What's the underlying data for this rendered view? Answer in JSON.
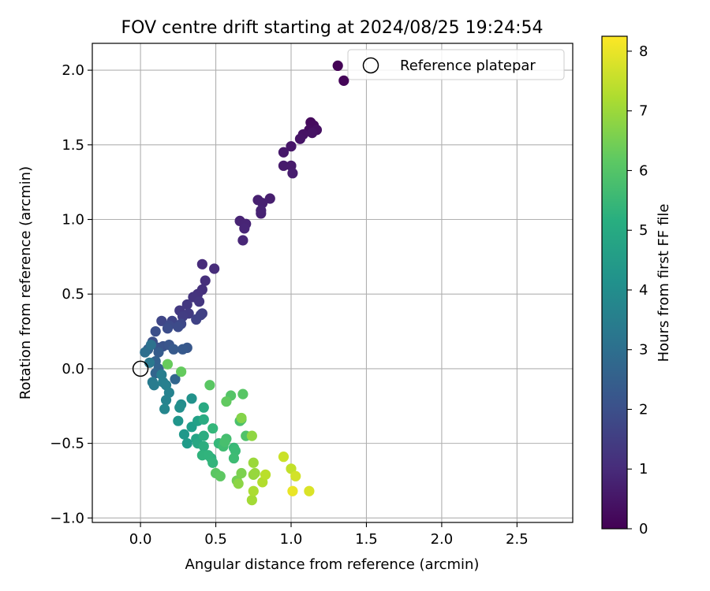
{
  "chart_data": {
    "type": "scatter",
    "title": "FOV centre drift starting at 2024/08/25 19:24:54",
    "xlabel": "Angular distance from reference (arcmin)",
    "ylabel": "Rotation from reference (arcmin)",
    "xlim": [
      -0.32,
      2.87
    ],
    "ylim": [
      -1.03,
      2.18
    ],
    "xticks": [
      0.0,
      0.5,
      1.0,
      1.5,
      2.0,
      2.5
    ],
    "xtick_labels": [
      "0.0",
      "0.5",
      "1.0",
      "1.5",
      "2.0",
      "2.5"
    ],
    "yticks": [
      -1.0,
      -0.5,
      0.0,
      0.5,
      1.0,
      1.5,
      2.0
    ],
    "ytick_labels": [
      "−1.0",
      "−0.5",
      "0.0",
      "0.5",
      "1.0",
      "1.5",
      "2.0"
    ],
    "grid": true,
    "legend": {
      "position": "top-right",
      "entries": [
        "Reference platepar"
      ]
    },
    "reference_point": {
      "x": 0.0,
      "y": 0.0,
      "label": "Reference platepar"
    },
    "colorbar": {
      "label": "Hours from first FF file",
      "range": [
        0,
        8.25
      ],
      "ticks": [
        0,
        1,
        2,
        3,
        4,
        5,
        6,
        7,
        8
      ],
      "tick_labels": [
        "0",
        "1",
        "2",
        "3",
        "4",
        "5",
        "6",
        "7",
        "8"
      ],
      "colormap": "viridis"
    },
    "points": [
      {
        "x": 1.31,
        "y": 2.03,
        "c": 0.05
      },
      {
        "x": 1.35,
        "y": 1.93,
        "c": 0.1
      },
      {
        "x": 1.13,
        "y": 1.65,
        "c": 0.2
      },
      {
        "x": 1.15,
        "y": 1.63,
        "c": 0.25
      },
      {
        "x": 1.12,
        "y": 1.6,
        "c": 0.3
      },
      {
        "x": 1.17,
        "y": 1.6,
        "c": 0.35
      },
      {
        "x": 1.08,
        "y": 1.57,
        "c": 0.4
      },
      {
        "x": 1.14,
        "y": 1.58,
        "c": 0.42
      },
      {
        "x": 1.06,
        "y": 1.54,
        "c": 0.45
      },
      {
        "x": 1.0,
        "y": 1.49,
        "c": 0.5
      },
      {
        "x": 0.95,
        "y": 1.45,
        "c": 0.55
      },
      {
        "x": 0.95,
        "y": 1.36,
        "c": 0.6
      },
      {
        "x": 1.0,
        "y": 1.36,
        "c": 0.62
      },
      {
        "x": 1.01,
        "y": 1.31,
        "c": 0.65
      },
      {
        "x": 0.86,
        "y": 1.14,
        "c": 0.7
      },
      {
        "x": 0.78,
        "y": 1.13,
        "c": 0.72
      },
      {
        "x": 0.81,
        "y": 1.11,
        "c": 0.75
      },
      {
        "x": 0.8,
        "y": 1.04,
        "c": 0.78
      },
      {
        "x": 0.8,
        "y": 1.06,
        "c": 0.8
      },
      {
        "x": 0.66,
        "y": 0.99,
        "c": 0.82
      },
      {
        "x": 0.7,
        "y": 0.97,
        "c": 0.85
      },
      {
        "x": 0.69,
        "y": 0.94,
        "c": 0.88
      },
      {
        "x": 0.68,
        "y": 0.86,
        "c": 0.9
      },
      {
        "x": 0.41,
        "y": 0.7,
        "c": 1.0
      },
      {
        "x": 0.49,
        "y": 0.67,
        "c": 1.05
      },
      {
        "x": 0.43,
        "y": 0.59,
        "c": 1.1
      },
      {
        "x": 0.41,
        "y": 0.53,
        "c": 1.15
      },
      {
        "x": 0.38,
        "y": 0.5,
        "c": 1.2
      },
      {
        "x": 0.35,
        "y": 0.48,
        "c": 1.25
      },
      {
        "x": 0.39,
        "y": 0.45,
        "c": 1.3
      },
      {
        "x": 0.31,
        "y": 0.43,
        "c": 1.35
      },
      {
        "x": 0.26,
        "y": 0.39,
        "c": 1.4
      },
      {
        "x": 0.32,
        "y": 0.37,
        "c": 1.45
      },
      {
        "x": 0.28,
        "y": 0.35,
        "c": 1.5
      },
      {
        "x": 0.41,
        "y": 0.37,
        "c": 1.55
      },
      {
        "x": 0.4,
        "y": 0.36,
        "c": 1.6
      },
      {
        "x": 0.37,
        "y": 0.33,
        "c": 1.65
      },
      {
        "x": 0.21,
        "y": 0.32,
        "c": 1.7
      },
      {
        "x": 0.14,
        "y": 0.32,
        "c": 1.75
      },
      {
        "x": 0.27,
        "y": 0.3,
        "c": 1.8
      },
      {
        "x": 0.19,
        "y": 0.29,
        "c": 1.85
      },
      {
        "x": 0.25,
        "y": 0.28,
        "c": 1.9
      },
      {
        "x": 0.18,
        "y": 0.27,
        "c": 1.95
      },
      {
        "x": 0.1,
        "y": 0.25,
        "c": 2.0
      },
      {
        "x": 0.08,
        "y": 0.18,
        "c": 2.05
      },
      {
        "x": 0.15,
        "y": 0.15,
        "c": 2.1
      },
      {
        "x": 0.12,
        "y": 0.14,
        "c": 2.15
      },
      {
        "x": 0.19,
        "y": 0.16,
        "c": 2.2
      },
      {
        "x": 0.31,
        "y": 0.14,
        "c": 2.25
      },
      {
        "x": 0.28,
        "y": 0.13,
        "c": 2.3
      },
      {
        "x": 0.22,
        "y": 0.13,
        "c": 2.35
      },
      {
        "x": 0.12,
        "y": 0.11,
        "c": 2.4
      },
      {
        "x": 0.05,
        "y": 0.13,
        "c": 2.5
      },
      {
        "x": 0.1,
        "y": 0.05,
        "c": 2.55
      },
      {
        "x": 0.12,
        "y": 0.0,
        "c": 2.6
      },
      {
        "x": 0.1,
        "y": -0.03,
        "c": 2.65
      },
      {
        "x": 0.23,
        "y": -0.07,
        "c": 2.7
      },
      {
        "x": 0.03,
        "y": 0.11,
        "c": 3.0
      },
      {
        "x": 0.07,
        "y": 0.16,
        "c": 3.1
      },
      {
        "x": 0.06,
        "y": 0.04,
        "c": 3.3
      },
      {
        "x": 0.08,
        "y": -0.09,
        "c": 3.4
      },
      {
        "x": 0.09,
        "y": -0.11,
        "c": 3.45
      },
      {
        "x": 0.14,
        "y": -0.04,
        "c": 3.5
      },
      {
        "x": 0.15,
        "y": -0.09,
        "c": 3.55
      },
      {
        "x": 0.17,
        "y": -0.11,
        "c": 3.6
      },
      {
        "x": 0.19,
        "y": -0.16,
        "c": 3.65
      },
      {
        "x": 0.17,
        "y": -0.21,
        "c": 3.7
      },
      {
        "x": 0.16,
        "y": -0.27,
        "c": 3.8
      },
      {
        "x": 0.27,
        "y": -0.24,
        "c": 4.0
      },
      {
        "x": 0.26,
        "y": -0.26,
        "c": 4.1
      },
      {
        "x": 0.34,
        "y": -0.2,
        "c": 4.2
      },
      {
        "x": 0.25,
        "y": -0.35,
        "c": 4.3
      },
      {
        "x": 0.29,
        "y": -0.44,
        "c": 4.4
      },
      {
        "x": 0.31,
        "y": -0.5,
        "c": 4.5
      },
      {
        "x": 0.34,
        "y": -0.39,
        "c": 4.6
      },
      {
        "x": 0.38,
        "y": -0.35,
        "c": 4.7
      },
      {
        "x": 0.37,
        "y": -0.47,
        "c": 4.8
      },
      {
        "x": 0.38,
        "y": -0.5,
        "c": 4.9
      },
      {
        "x": 0.42,
        "y": -0.26,
        "c": 5.0
      },
      {
        "x": 0.42,
        "y": -0.34,
        "c": 5.05
      },
      {
        "x": 0.42,
        "y": -0.45,
        "c": 5.1
      },
      {
        "x": 0.42,
        "y": -0.52,
        "c": 5.15
      },
      {
        "x": 0.47,
        "y": -0.6,
        "c": 5.2
      },
      {
        "x": 0.41,
        "y": -0.58,
        "c": 5.3
      },
      {
        "x": 0.45,
        "y": -0.58,
        "c": 5.35
      },
      {
        "x": 0.48,
        "y": -0.63,
        "c": 5.4
      },
      {
        "x": 0.48,
        "y": -0.4,
        "c": 5.45
      },
      {
        "x": 0.52,
        "y": -0.5,
        "c": 5.5
      },
      {
        "x": 0.62,
        "y": -0.53,
        "c": 5.55
      },
      {
        "x": 0.63,
        "y": -0.55,
        "c": 5.6
      },
      {
        "x": 0.62,
        "y": -0.6,
        "c": 5.65
      },
      {
        "x": 0.55,
        "y": -0.52,
        "c": 5.7
      },
      {
        "x": 0.57,
        "y": -0.47,
        "c": 5.75
      },
      {
        "x": 0.56,
        "y": -0.49,
        "c": 5.8
      },
      {
        "x": 0.66,
        "y": -0.35,
        "c": 5.85
      },
      {
        "x": 0.67,
        "y": -0.34,
        "c": 5.9
      },
      {
        "x": 0.7,
        "y": -0.45,
        "c": 5.95
      },
      {
        "x": 0.6,
        "y": -0.18,
        "c": 6.0
      },
      {
        "x": 0.68,
        "y": -0.17,
        "c": 6.05
      },
      {
        "x": 0.46,
        "y": -0.11,
        "c": 6.1
      },
      {
        "x": 0.5,
        "y": -0.7,
        "c": 6.1
      },
      {
        "x": 0.53,
        "y": -0.72,
        "c": 6.15
      },
      {
        "x": 0.57,
        "y": -0.22,
        "c": 6.2
      },
      {
        "x": 0.27,
        "y": -0.02,
        "c": 6.25
      },
      {
        "x": 0.18,
        "y": 0.03,
        "c": 6.3
      },
      {
        "x": 0.64,
        "y": -0.75,
        "c": 6.5
      },
      {
        "x": 0.67,
        "y": -0.7,
        "c": 6.6
      },
      {
        "x": 0.67,
        "y": -0.33,
        "c": 6.7
      },
      {
        "x": 0.65,
        "y": -0.77,
        "c": 6.8
      },
      {
        "x": 0.74,
        "y": -0.45,
        "c": 6.85
      },
      {
        "x": 0.75,
        "y": -0.71,
        "c": 6.9
      },
      {
        "x": 0.76,
        "y": -0.7,
        "c": 6.95
      },
      {
        "x": 0.75,
        "y": -0.63,
        "c": 7.0
      },
      {
        "x": 0.74,
        "y": -0.88,
        "c": 7.1
      },
      {
        "x": 0.75,
        "y": -0.82,
        "c": 7.2
      },
      {
        "x": 0.81,
        "y": -0.76,
        "c": 7.3
      },
      {
        "x": 0.83,
        "y": -0.71,
        "c": 7.4
      },
      {
        "x": 1.0,
        "y": -0.67,
        "c": 7.5
      },
      {
        "x": 0.95,
        "y": -0.59,
        "c": 7.6
      },
      {
        "x": 1.03,
        "y": -0.72,
        "c": 7.7
      },
      {
        "x": 1.12,
        "y": -0.82,
        "c": 7.8
      },
      {
        "x": 1.01,
        "y": -0.82,
        "c": 8.0
      }
    ]
  }
}
